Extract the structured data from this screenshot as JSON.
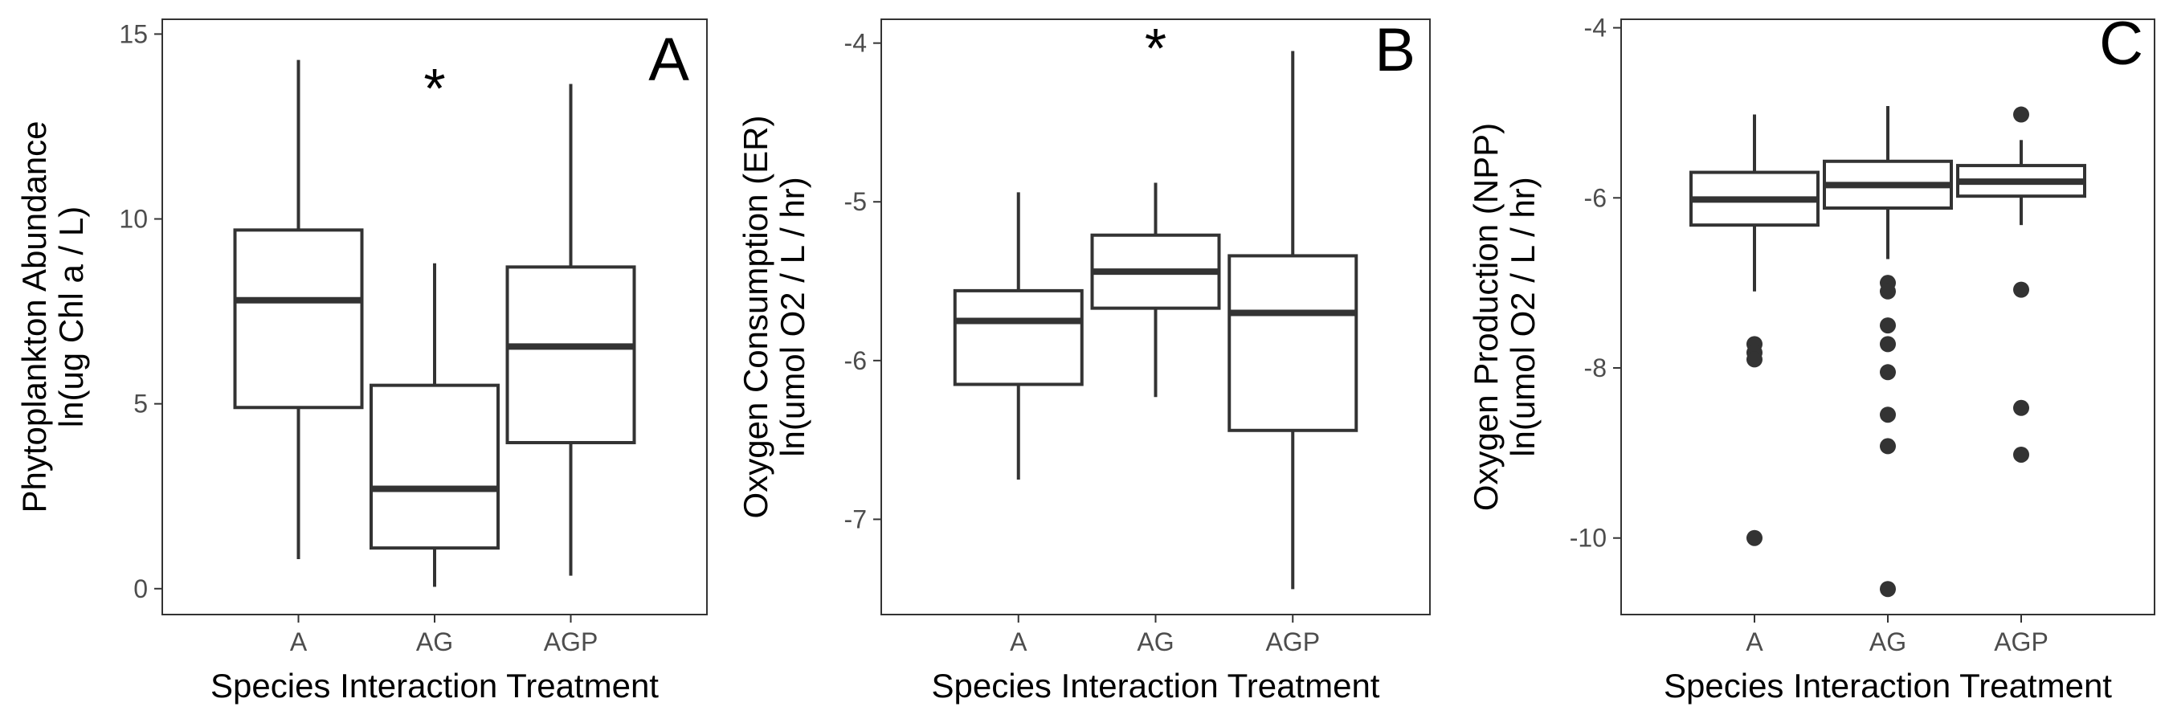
{
  "chart_data": [
    {
      "type": "box",
      "panel": "A",
      "ylabel": [
        "Phytoplankton Abundance",
        "ln(ug Chl a / L)"
      ],
      "xlabel": "Species Interaction Treatment",
      "yticks": [
        0,
        5,
        10,
        15
      ],
      "ylim": [
        -0.7,
        15.4
      ],
      "categories": [
        "A",
        "AG",
        "AGP"
      ],
      "boxes": [
        {
          "category": "A",
          "lower_whisker": 0.8,
          "q1": 4.9,
          "median": 7.8,
          "q3": 9.7,
          "upper_whisker": 14.3,
          "outliers": []
        },
        {
          "category": "AG",
          "lower_whisker": 0.05,
          "q1": 1.1,
          "median": 2.7,
          "q3": 5.5,
          "upper_whisker": 8.8,
          "outliers": []
        },
        {
          "category": "AGP",
          "lower_whisker": 0.35,
          "q1": 3.95,
          "median": 6.55,
          "q3": 8.7,
          "upper_whisker": 13.65,
          "outliers": []
        }
      ],
      "annotations": [
        {
          "text": "*",
          "category": "AG",
          "y": 14.1
        }
      ]
    },
    {
      "type": "box",
      "panel": "B",
      "ylabel": [
        "Oxygen Consumption (ER)",
        "ln(umol O2 / L / hr)"
      ],
      "xlabel": "Species Interaction Treatment",
      "yticks": [
        -7,
        -6,
        -5,
        -4
      ],
      "ylim": [
        -7.6,
        -3.85
      ],
      "categories": [
        "A",
        "AG",
        "AGP"
      ],
      "boxes": [
        {
          "category": "A",
          "lower_whisker": -6.75,
          "q1": -6.15,
          "median": -5.75,
          "q3": -5.56,
          "upper_whisker": -4.94,
          "outliers": []
        },
        {
          "category": "AG",
          "lower_whisker": -6.23,
          "q1": -5.67,
          "median": -5.44,
          "q3": -5.21,
          "upper_whisker": -4.88,
          "outliers": []
        },
        {
          "category": "AGP",
          "lower_whisker": -7.44,
          "q1": -6.44,
          "median": -5.7,
          "q3": -5.34,
          "upper_whisker": -4.05,
          "outliers": []
        }
      ],
      "annotations": [
        {
          "text": "*",
          "category": "AG",
          "y": -3.9
        }
      ]
    },
    {
      "type": "box",
      "panel": "C",
      "ylabel": [
        "Oxygen Production (NPP)",
        "ln(umol O2 / L / hr)"
      ],
      "xlabel": "Species Interaction Treatment",
      "yticks": [
        -10,
        -8,
        -6,
        -4
      ],
      "ylim": [
        -10.9,
        -3.9
      ],
      "categories": [
        "A",
        "AG",
        "AGP"
      ],
      "boxes": [
        {
          "category": "A",
          "lower_whisker": -7.1,
          "q1": -6.32,
          "median": -6.02,
          "q3": -5.7,
          "upper_whisker": -5.02,
          "outliers": [
            -7.72,
            -7.82,
            -7.9,
            -10.0
          ]
        },
        {
          "category": "AG",
          "lower_whisker": -6.72,
          "q1": -6.12,
          "median": -5.85,
          "q3": -5.57,
          "upper_whisker": -4.92,
          "outliers": [
            -7.0,
            -7.1,
            -7.5,
            -7.72,
            -8.05,
            -8.55,
            -8.92,
            -10.6
          ]
        },
        {
          "category": "AGP",
          "lower_whisker": -6.32,
          "q1": -5.98,
          "median": -5.81,
          "q3": -5.62,
          "upper_whisker": -5.32,
          "outliers": [
            -5.02,
            -7.08,
            -8.47,
            -9.02
          ]
        }
      ],
      "annotations": []
    }
  ]
}
